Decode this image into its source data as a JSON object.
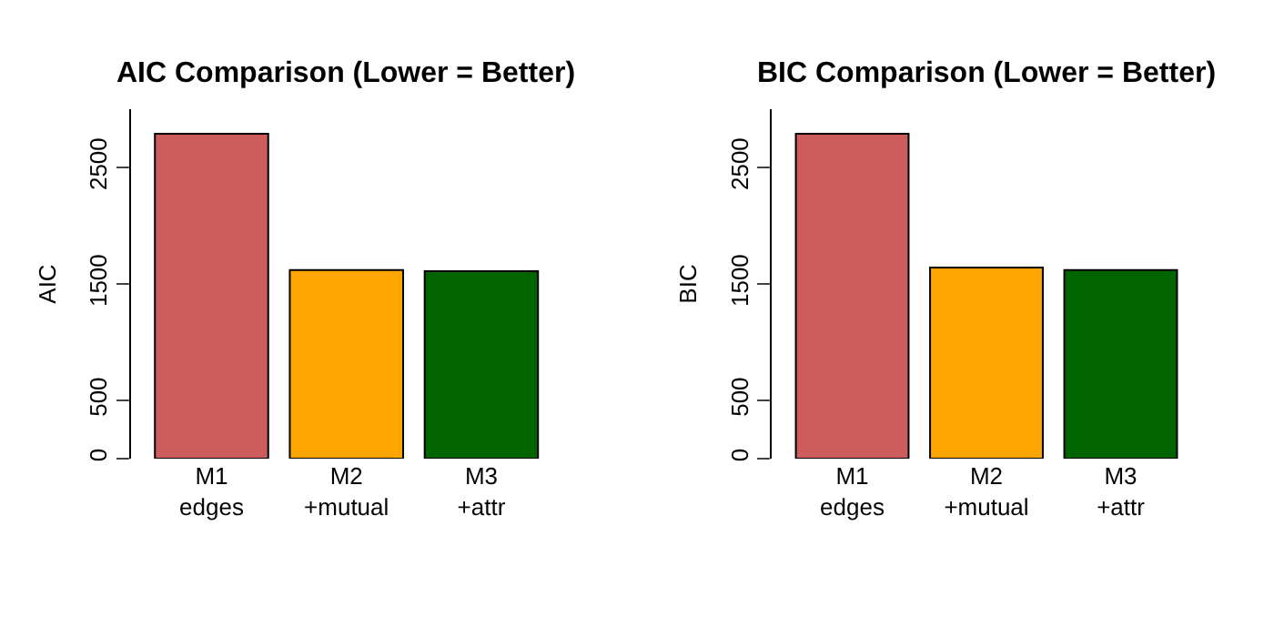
{
  "chart_data": [
    {
      "type": "bar",
      "title": "AIC Comparison (Lower = Better)",
      "ylabel": "AIC",
      "categories": [
        "M1\nedges",
        "M2\n+mutual",
        "M3\n+attr"
      ],
      "values": [
        2790,
        1620,
        1610
      ],
      "colors": [
        "#cd5c5c",
        "#ffa500",
        "#006400"
      ],
      "ylim": [
        0,
        3000
      ],
      "yticks": [
        0,
        500,
        1500,
        2500
      ]
    },
    {
      "type": "bar",
      "title": "BIC Comparison (Lower = Better)",
      "ylabel": "BIC",
      "categories": [
        "M1\nedges",
        "M2\n+mutual",
        "M3\n+attr"
      ],
      "values": [
        2790,
        1640,
        1620
      ],
      "colors": [
        "#cd5c5c",
        "#ffa500",
        "#006400"
      ],
      "ylim": [
        0,
        3000
      ],
      "yticks": [
        0,
        500,
        1500,
        2500
      ]
    }
  ]
}
